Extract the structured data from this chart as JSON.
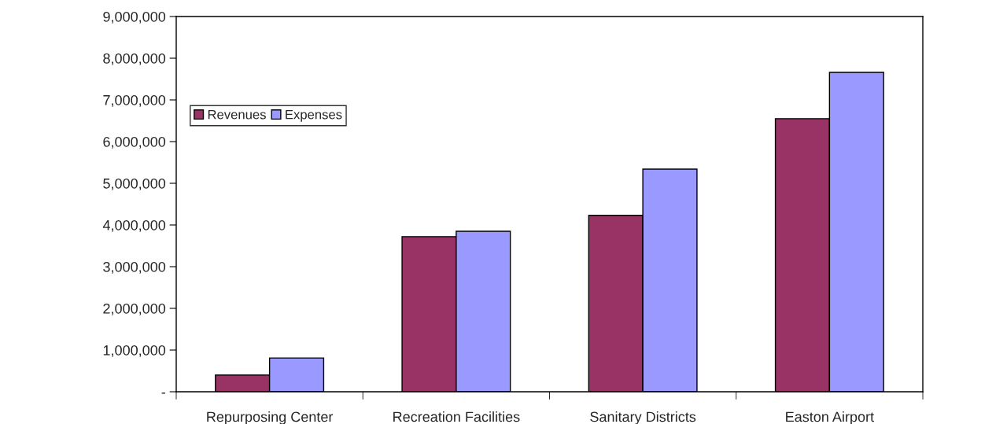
{
  "chart_data": {
    "type": "bar",
    "categories": [
      "Repurposing Center",
      "Recreation Facilities",
      "Sanitary Districts",
      "Easton Airport"
    ],
    "series": [
      {
        "name": "Revenues",
        "color": "#993366",
        "values": [
          400000,
          3720000,
          4230000,
          6550000
        ]
      },
      {
        "name": "Expenses",
        "color": "#9999ff",
        "values": [
          810000,
          3850000,
          5340000,
          7660000
        ]
      }
    ],
    "ylim": [
      0,
      9000000
    ],
    "yticks": [
      {
        "value": 0,
        "label": "-"
      },
      {
        "value": 1000000,
        "label": "1,000,000"
      },
      {
        "value": 2000000,
        "label": "2,000,000"
      },
      {
        "value": 3000000,
        "label": "3,000,000"
      },
      {
        "value": 4000000,
        "label": "4,000,000"
      },
      {
        "value": 5000000,
        "label": "5,000,000"
      },
      {
        "value": 6000000,
        "label": "6,000,000"
      },
      {
        "value": 7000000,
        "label": "7,000,000"
      },
      {
        "value": 8000000,
        "label": "8,000,000"
      },
      {
        "value": 9000000,
        "label": "9,000,000"
      }
    ],
    "grid": false,
    "legend": "top left"
  }
}
